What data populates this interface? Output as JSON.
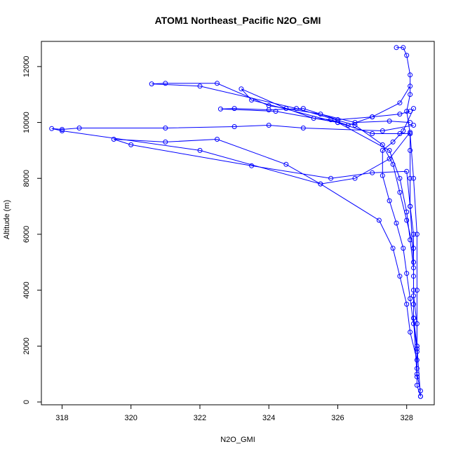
{
  "chart_data": {
    "type": "line",
    "title": "ATOM1 Northeast_Pacific N2O_GMI",
    "xlabel": "N2O_GMI",
    "ylabel": "Altitude (m)",
    "xlim": [
      317.4,
      328.8
    ],
    "ylim": [
      -100,
      12900
    ],
    "xticks": [
      318,
      320,
      322,
      324,
      326,
      328
    ],
    "yticks": [
      0,
      2000,
      4000,
      6000,
      8000,
      10000,
      12000
    ],
    "grid": false,
    "legend": "none",
    "color": "#0000ff",
    "marker": "open-circle",
    "series": [
      {
        "values": [
          [
            328.4,
            200
          ],
          [
            328.3,
            600
          ],
          [
            328.3,
            1200
          ],
          [
            328.3,
            2000
          ],
          [
            328.2,
            3000
          ],
          [
            328.2,
            4000
          ],
          [
            328.2,
            5000
          ],
          [
            328.2,
            6000
          ],
          [
            328.1,
            7000
          ],
          [
            328.1,
            8000
          ],
          [
            328.1,
            9000
          ],
          [
            328.1,
            9600
          ],
          [
            328.0,
            10400
          ],
          [
            328.1,
            11000
          ],
          [
            328.1,
            11700
          ],
          [
            328.0,
            12400
          ],
          [
            327.9,
            12680
          ],
          [
            327.7,
            12680
          ]
        ]
      },
      {
        "values": [
          [
            328.1,
            10400
          ],
          [
            327.8,
            10300
          ],
          [
            327.0,
            10200
          ],
          [
            326.0,
            10100
          ],
          [
            325.0,
            10500
          ],
          [
            324.0,
            10450
          ],
          [
            323.0,
            10500
          ],
          [
            322.6,
            10480
          ],
          [
            324.2,
            10400
          ],
          [
            326.0,
            10000
          ],
          [
            327.0,
            9600
          ],
          [
            327.8,
            9600
          ],
          [
            328.1,
            9600
          ],
          [
            328.2,
            8000
          ],
          [
            328.3,
            6000
          ],
          [
            328.3,
            4000
          ],
          [
            328.3,
            2000
          ],
          [
            328.4,
            200
          ]
        ]
      },
      {
        "values": [
          [
            328.1,
            9650
          ],
          [
            327.5,
            8700
          ],
          [
            326.5,
            8000
          ],
          [
            325.5,
            7800
          ],
          [
            324.5,
            8500
          ],
          [
            322.5,
            9400
          ],
          [
            321.0,
            9300
          ],
          [
            319.5,
            9400
          ],
          [
            320.0,
            9200
          ],
          [
            323.5,
            8450
          ],
          [
            325.8,
            8000
          ],
          [
            327.0,
            8200
          ],
          [
            328.0,
            8250
          ],
          [
            328.1,
            7000
          ],
          [
            328.2,
            5000
          ],
          [
            328.2,
            3000
          ],
          [
            328.3,
            900
          ]
        ]
      },
      {
        "values": [
          [
            328.2,
            9900
          ],
          [
            327.3,
            9700
          ],
          [
            325.0,
            9800
          ],
          [
            324.0,
            9900
          ],
          [
            323.0,
            9850
          ],
          [
            321.0,
            9800
          ],
          [
            318.5,
            9800
          ],
          [
            318.0,
            9750
          ],
          [
            317.7,
            9780
          ],
          [
            318.0,
            9700
          ],
          [
            322.0,
            9000
          ],
          [
            325.5,
            7800
          ],
          [
            327.2,
            6500
          ],
          [
            327.6,
            5500
          ],
          [
            327.8,
            4500
          ],
          [
            328.0,
            3500
          ],
          [
            328.1,
            2500
          ],
          [
            328.3,
            1500
          ]
        ]
      },
      {
        "values": [
          [
            328.1,
            10000
          ],
          [
            327.5,
            10050
          ],
          [
            326.5,
            10000
          ],
          [
            325.5,
            10300
          ],
          [
            324.0,
            10600
          ],
          [
            322.5,
            11400
          ],
          [
            321.0,
            11400
          ],
          [
            320.6,
            11380
          ],
          [
            322.0,
            11300
          ],
          [
            324.8,
            10500
          ],
          [
            326.5,
            9900
          ],
          [
            327.3,
            9200
          ],
          [
            327.6,
            8500
          ],
          [
            327.8,
            7500
          ],
          [
            328.0,
            6500
          ],
          [
            328.2,
            5500
          ],
          [
            328.2,
            4500
          ],
          [
            328.2,
            3500
          ]
        ]
      },
      {
        "values": [
          [
            328.1,
            11300
          ],
          [
            327.8,
            10700
          ],
          [
            327.0,
            10200
          ],
          [
            326.3,
            9900
          ],
          [
            325.8,
            10100
          ],
          [
            325.3,
            10150
          ],
          [
            324.5,
            10500
          ],
          [
            323.2,
            11200
          ],
          [
            323.5,
            10800
          ],
          [
            326.0,
            10000
          ],
          [
            327.5,
            9000
          ],
          [
            327.8,
            8000
          ],
          [
            328.0,
            6800
          ],
          [
            328.1,
            5800
          ],
          [
            328.2,
            4800
          ],
          [
            328.2,
            3800
          ],
          [
            328.3,
            2800
          ],
          [
            328.3,
            1800
          ]
        ]
      },
      {
        "values": [
          [
            328.2,
            10500
          ],
          [
            327.9,
            9700
          ],
          [
            327.6,
            9300
          ],
          [
            327.3,
            9000
          ],
          [
            327.3,
            8100
          ],
          [
            327.5,
            7200
          ],
          [
            327.7,
            6400
          ],
          [
            327.9,
            5500
          ],
          [
            328.0,
            4600
          ],
          [
            328.1,
            3700
          ],
          [
            328.2,
            2800
          ],
          [
            328.3,
            1900
          ],
          [
            328.3,
            1000
          ],
          [
            328.4,
            400
          ]
        ]
      }
    ]
  }
}
